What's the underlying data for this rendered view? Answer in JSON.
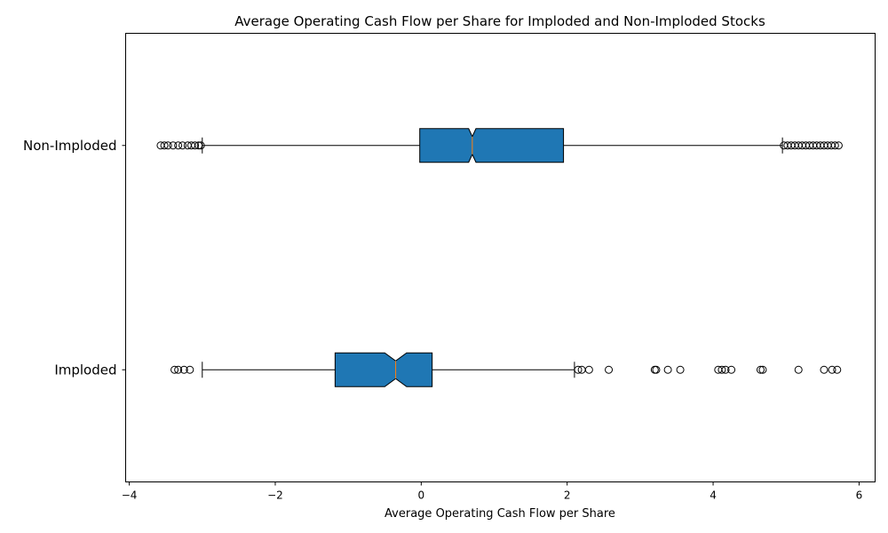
{
  "chart_data": {
    "type": "boxplot",
    "orientation": "horizontal",
    "notched": true,
    "title": "Average Operating Cash Flow per Share for Imploded and Non-Imploded Stocks",
    "xlabel": "Average Operating Cash Flow per Share",
    "ylabel": "",
    "xlim": [
      -4.05,
      6.22
    ],
    "xticks": [
      -4,
      -2,
      0,
      2,
      4,
      6
    ],
    "xtick_labels": [
      "−4",
      "−2",
      "0",
      "2",
      "4",
      "6"
    ],
    "box_color": "#1f77b4",
    "median_color": "#ff7f0e",
    "series": [
      {
        "name": "Imploded",
        "label": "Imploded",
        "whisker_low": -3.0,
        "q1": -1.18,
        "notch_low": -0.5,
        "median": -0.35,
        "notch_high": -0.2,
        "q3": 0.15,
        "whisker_high": 2.1,
        "outliers": [
          -3.38,
          -3.33,
          -3.25,
          -3.17,
          2.15,
          2.2,
          2.3,
          2.57,
          3.2,
          3.22,
          3.38,
          3.55,
          4.07,
          4.12,
          4.17,
          4.25,
          4.65,
          4.68,
          5.17,
          5.52,
          5.63,
          5.7
        ]
      },
      {
        "name": "Non-Imploded",
        "label": "Non-Imploded",
        "whisker_low": -3.0,
        "q1": -0.02,
        "notch_low": 0.65,
        "median": 0.7,
        "notch_high": 0.75,
        "q3": 1.95,
        "whisker_high": 4.95,
        "outliers": [
          -3.57,
          -3.52,
          -3.47,
          -3.4,
          -3.33,
          -3.27,
          -3.2,
          -3.15,
          -3.1,
          -3.05,
          -3.02,
          4.97,
          5.02,
          5.07,
          5.12,
          5.17,
          5.22,
          5.27,
          5.32,
          5.37,
          5.42,
          5.47,
          5.52,
          5.57,
          5.62,
          5.67,
          5.72
        ]
      }
    ]
  }
}
